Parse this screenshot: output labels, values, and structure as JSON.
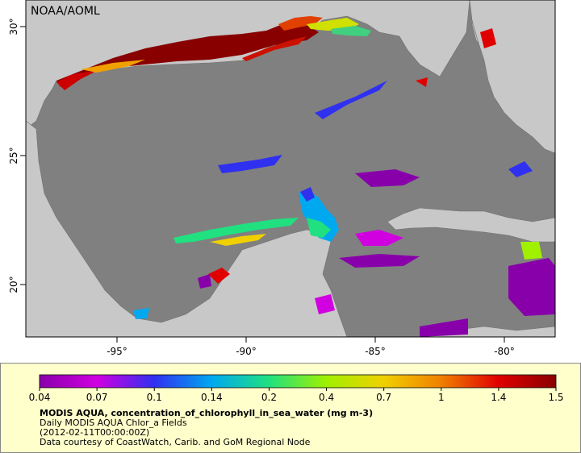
{
  "map": {
    "watermark": "NOAA/AOML",
    "lon_ticks": [
      "-95°",
      "-90°",
      "-85°",
      "-80°"
    ],
    "lat_ticks": [
      "30°",
      "25°",
      "20°"
    ],
    "lon_range": [
      -98,
      -78
    ],
    "lat_range": [
      18,
      31
    ]
  },
  "colorbar": {
    "tick_labels": [
      "0.04",
      "0.07",
      "0.1",
      "0.14",
      "0.2",
      "0.4",
      "0.7",
      "1",
      "1.4",
      "1.5"
    ],
    "colors": [
      "#8800aa",
      "#d000e0",
      "#3030f0",
      "#00a8f0",
      "#20e080",
      "#a0f000",
      "#f0d000",
      "#f08000",
      "#e00000",
      "#880000"
    ]
  },
  "caption": {
    "title": "MODIS AQUA, concentration_of_chlorophyll_in_sea_water (mg m-3)",
    "subtitle": "Daily MODIS AQUA Chlor_a Fields",
    "time": "(2012-02-11T00:00:00Z)",
    "credit": "Data courtesy of CoastWatch, Carib. and GoM Regional Node"
  },
  "colors": {
    "ocean_nodata": "#808080",
    "land": "#c8c8c8",
    "legend_bg": "#ffffcc"
  }
}
